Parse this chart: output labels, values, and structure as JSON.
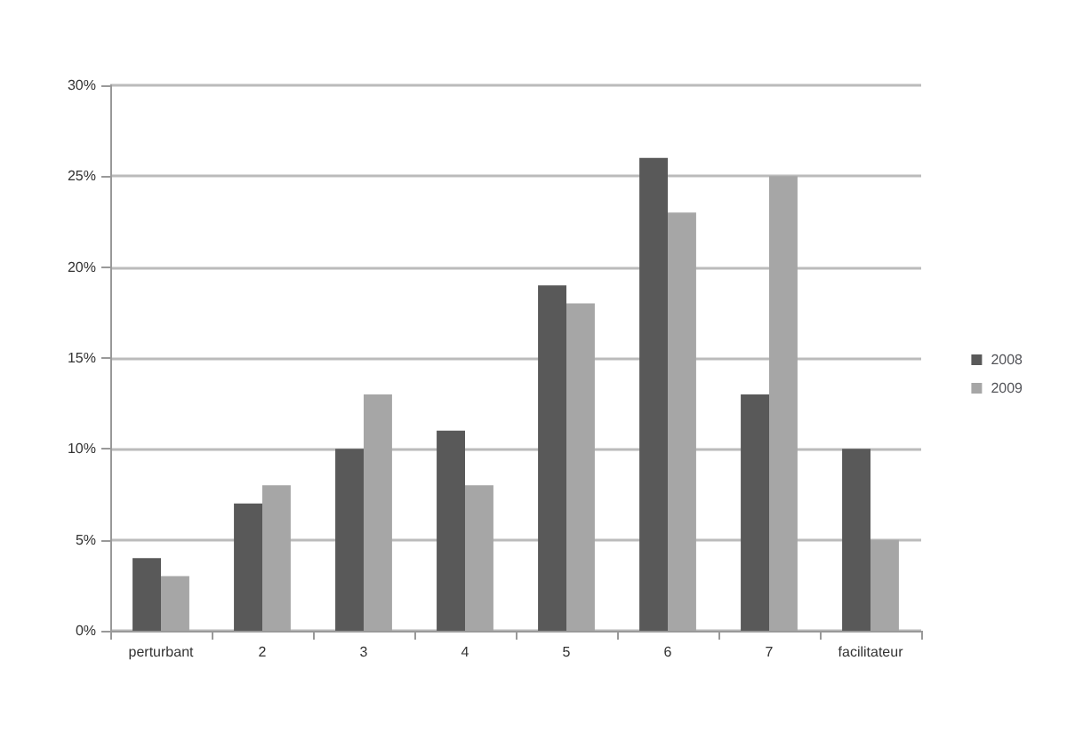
{
  "chart_data": {
    "type": "bar",
    "categories": [
      "perturbant",
      "2",
      "3",
      "4",
      "5",
      "6",
      "7",
      "facilitateur"
    ],
    "series": [
      {
        "name": "2008",
        "color": "#595959",
        "values": [
          4,
          7,
          10,
          11,
          19,
          26,
          13,
          10
        ]
      },
      {
        "name": "2009",
        "color": "#a6a6a6",
        "values": [
          3,
          8,
          13,
          8,
          18,
          23,
          25,
          5
        ]
      }
    ],
    "ylim": [
      0,
      30
    ],
    "yticks": [
      {
        "value": 0,
        "label": "0%"
      },
      {
        "value": 5,
        "label": "5%"
      },
      {
        "value": 10,
        "label": "10%"
      },
      {
        "value": 15,
        "label": "15%"
      },
      {
        "value": 20,
        "label": "20%"
      },
      {
        "value": 25,
        "label": "25%"
      },
      {
        "value": 30,
        "label": "30%"
      }
    ],
    "grid": "y",
    "legend": "right"
  }
}
